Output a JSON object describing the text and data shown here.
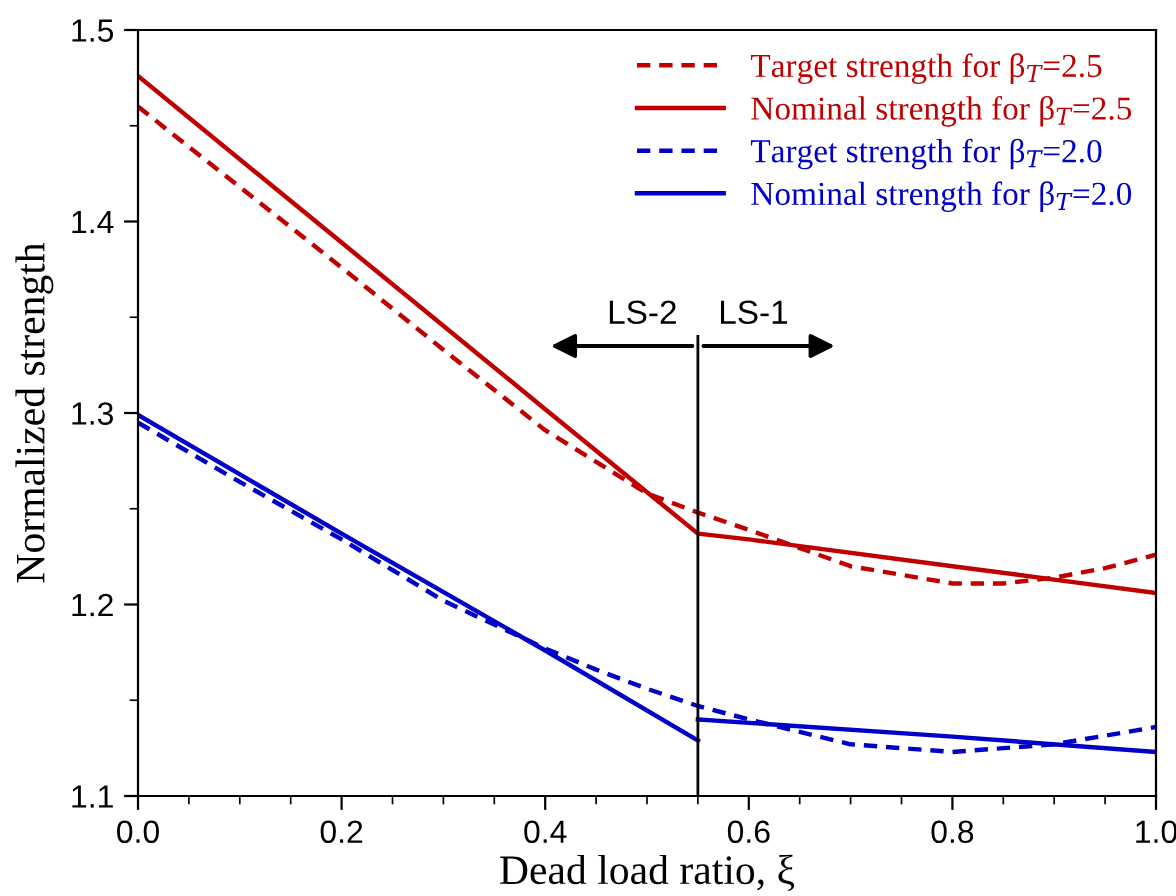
{
  "chart_data": {
    "type": "line",
    "xlabel": "Dead load ratio, ξ",
    "ylabel": "Normalized strength",
    "xlim": [
      0.0,
      1.0
    ],
    "ylim": [
      1.1,
      1.5
    ],
    "xticks": [
      {
        "value": 0.0,
        "label": "0.0"
      },
      0.2,
      0.4,
      0.6,
      0.8,
      {
        "value": 1.0,
        "label": "1.0"
      }
    ],
    "yticks": [
      {
        "value": 1.1,
        "label": "1.1"
      },
      1.2,
      1.3,
      1.4,
      1.5
    ],
    "grid": false,
    "legend": "top right",
    "marker": "none",
    "ref_lines": [
      {
        "axis": "x",
        "value": 0.55,
        "color": "#000000"
      }
    ],
    "annotations": [
      "LS-2",
      "LS-1"
    ],
    "series": [
      {
        "name": "Target strength for β$_{T}$=2.5",
        "color": "#c00000",
        "line_style": "dashed",
        "x": [
          0,
          0.1,
          0.2,
          0.3,
          0.4,
          0.5,
          0.55,
          0.6,
          0.7,
          0.8,
          0.85,
          0.9,
          0.95,
          1.0
        ],
        "values": [
          1.46,
          1.418,
          1.376,
          1.333,
          1.291,
          1.258,
          1.248,
          1.239,
          1.22,
          1.211,
          1.211,
          1.214,
          1.219,
          1.226
        ]
      },
      {
        "name": "Nominal strength for β$_{T}$=2.5",
        "color": "#c00000",
        "line_style": "solid",
        "x": [
          0,
          0.2,
          0.4,
          0.55,
          0.6,
          0.8,
          0.9,
          1.0
        ],
        "values": [
          1.476,
          1.389,
          1.302,
          1.237,
          1.234,
          1.22,
          1.213,
          1.206
        ]
      },
      {
        "name": "Target strength for β$_{T}$=2.0",
        "color": "#0000c8",
        "line_style": "dashed",
        "x": [
          0,
          0.1,
          0.2,
          0.3,
          0.4,
          0.45,
          0.5,
          0.55,
          0.6,
          0.7,
          0.8,
          0.9,
          1.0
        ],
        "values": [
          1.295,
          1.264,
          1.234,
          1.202,
          1.177,
          1.166,
          1.156,
          1.147,
          1.14,
          1.127,
          1.123,
          1.127,
          1.136
        ]
      },
      {
        "name": "Nominal strength for β$_{T}$=2.0",
        "color": "#0000c8",
        "line_style": "solid",
        "x": [
          0,
          0.2,
          0.4,
          0.55
        ],
        "values": [
          1.299,
          1.237,
          1.176,
          1.129
        ]
      },
      {
        "color": "#0000c8",
        "line_style": "solid",
        "x": [
          0.55,
          0.8,
          1.0
        ],
        "values": [
          1.14,
          1.131,
          1.123
        ]
      }
    ]
  }
}
